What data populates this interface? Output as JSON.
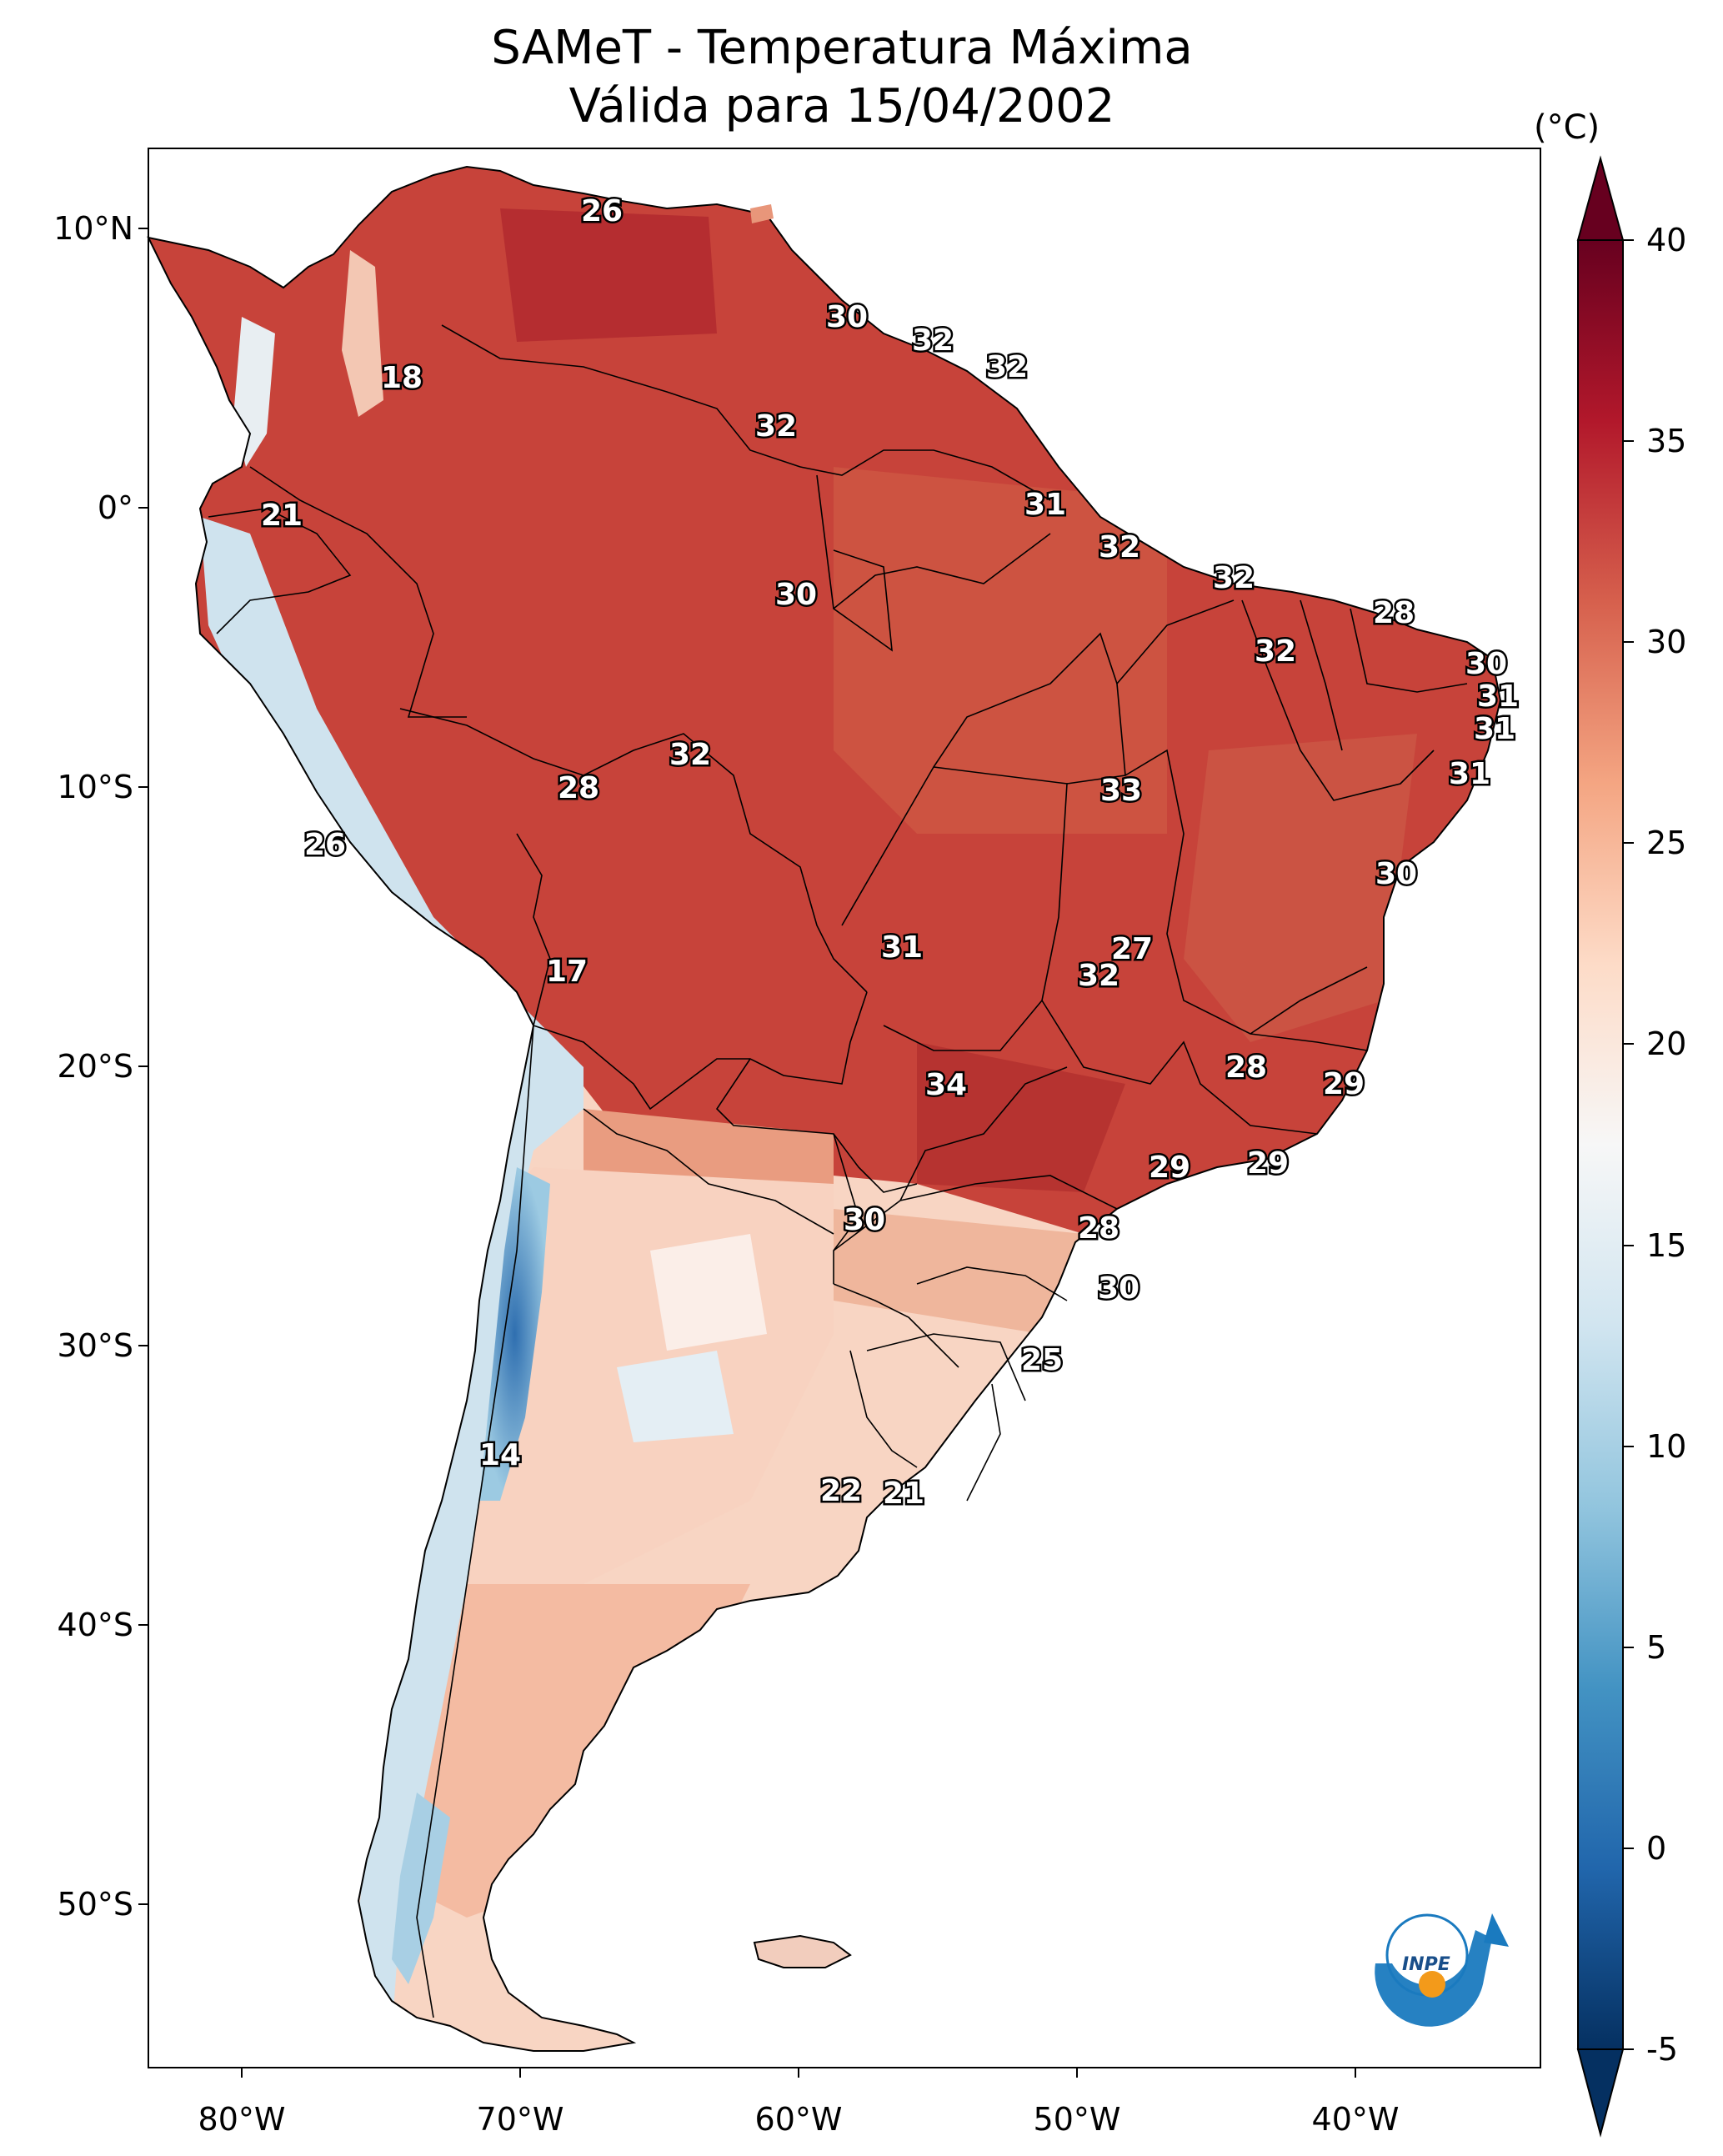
{
  "title_line1": "SAMeT - Temperatura Máxima",
  "title_line2": "Válida para 15/04/2002",
  "lat_ticks": [
    "10°N",
    "0°",
    "10°S",
    "20°S",
    "30°S",
    "40°S",
    "50°S"
  ],
  "lon_ticks": [
    "80°W",
    "70°W",
    "60°W",
    "50°W",
    "40°W"
  ],
  "colorbar": {
    "unit": "(°C)",
    "ticks": [
      "40",
      "35",
      "30",
      "25",
      "20",
      "15",
      "10",
      "5",
      "0",
      "-5"
    ],
    "range": [
      -5,
      40
    ],
    "colors": [
      "#053061",
      "#2166ac",
      "#4393c3",
      "#92c5de",
      "#d1e5f0",
      "#f7f7f7",
      "#fddbc7",
      "#f4a582",
      "#d6604d",
      "#b2182b",
      "#67001f"
    ]
  },
  "logo_text": "INPE",
  "map_colors": {
    "hot": "#b83a32",
    "warm": "#d8654f",
    "mild": "#f6c7b2",
    "cool": "#fbe3d6",
    "cold": "#9ccae2",
    "andes": "#2f6fb0"
  },
  "contour_labels": [
    "26",
    "30",
    "32",
    "32",
    "18",
    "32",
    "31",
    "21",
    "32",
    "30",
    "32",
    "28",
    "32",
    "30",
    "31",
    "31",
    "31",
    "28",
    "32",
    "33",
    "26",
    "30",
    "27",
    "31",
    "32",
    "17",
    "28",
    "29",
    "34",
    "29",
    "29",
    "30",
    "28",
    "30",
    "25",
    "14",
    "22",
    "21"
  ]
}
